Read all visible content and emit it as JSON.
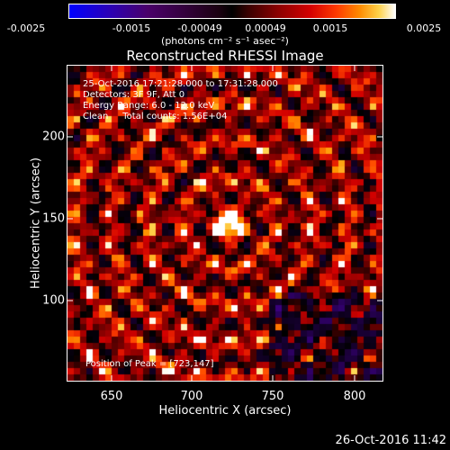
{
  "colorbar": {
    "ticks": [
      "-0.0025",
      "-0.0015",
      "-0.00049",
      "0.00049",
      "0.0015",
      "0.0025"
    ],
    "unit_label": "(photons cm⁻² s⁻¹ asec⁻²)"
  },
  "overlay": {
    "time": "25-Oct-2016 17:21:28.000 to 17:31:28.000",
    "detectors": "Detectors: 3F 9F, Att 0",
    "energy": "Energy Range: 6.0 - 12.0 keV",
    "clean": "Clean     Total counts: 1.56E+04",
    "peak": "Position of Peak = [723,147]"
  },
  "footer": {
    "timestamp": "26-Oct-2016 11:42"
  },
  "chart_data": {
    "type": "heatmap",
    "title": "Reconstructed RHESSI Image",
    "xlabel": "Heliocentric X (arcsec)",
    "ylabel": "Heliocentric Y (arcsec)",
    "xlim": [
      624,
      816
    ],
    "ylim": [
      51,
      243
    ],
    "x_ticks": [
      650,
      700,
      750,
      800
    ],
    "y_ticks": [
      100,
      150,
      200
    ],
    "colorbar_range": [
      -0.0025,
      0.0025
    ],
    "peak": {
      "x": 723,
      "y": 147
    },
    "colors": {
      "positive_high": "#ffffff",
      "positive_mid": "#ff4000",
      "positive_low": "#8a0000",
      "zero": "#000000",
      "negative": "#4a006a",
      "negative_high": "#0000ff"
    }
  }
}
